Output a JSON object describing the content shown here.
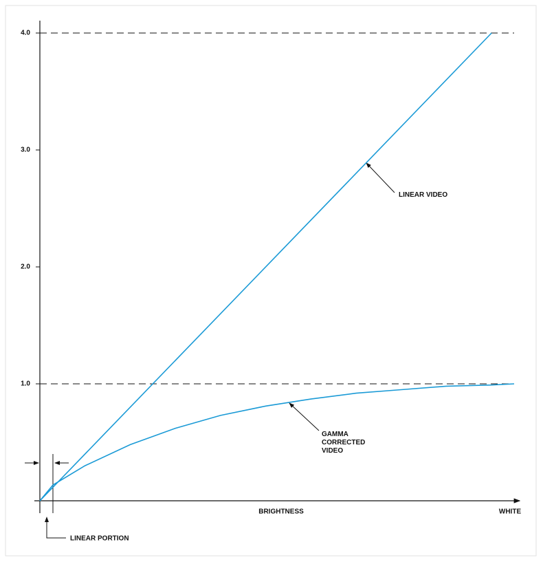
{
  "chart_data": {
    "type": "line",
    "x_label": "BRIGHTNESS",
    "x_end_label": "WHITE",
    "annotation": "LINEAR PORTION",
    "xlim": [
      0,
      1.05
    ],
    "ylim": [
      0,
      4
    ],
    "yticks": [
      {
        "value": 1,
        "label": "1.0"
      },
      {
        "value": 2,
        "label": "2.0"
      },
      {
        "value": 3,
        "label": "3.0"
      },
      {
        "value": 4,
        "label": "4.0"
      }
    ],
    "reference_lines": [
      1,
      4
    ],
    "series": [
      {
        "name": "LINEAR VIDEO",
        "color": "#1a9ad6",
        "x": [
          0,
          1
        ],
        "values": [
          0,
          4
        ]
      },
      {
        "name": "GAMMA CORRECTED VIDEO",
        "color": "#1a9ad6",
        "x": [
          0,
          0.029,
          0.1,
          0.2,
          0.3,
          0.4,
          0.5,
          0.6,
          0.7,
          0.8,
          0.9,
          1.0,
          1.05
        ],
        "values": [
          0,
          0.135,
          0.3,
          0.48,
          0.62,
          0.73,
          0.81,
          0.87,
          0.92,
          0.95,
          0.98,
          0.99,
          1.0
        ]
      }
    ]
  }
}
